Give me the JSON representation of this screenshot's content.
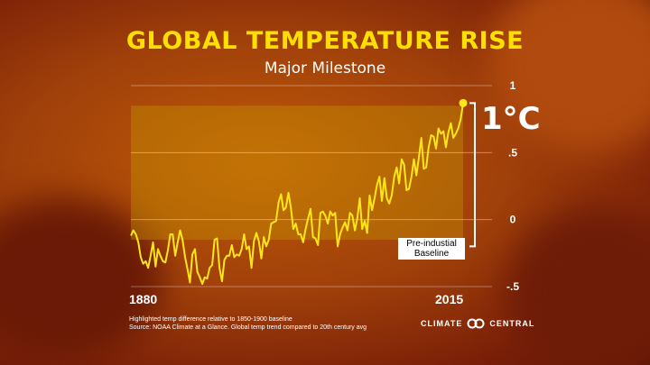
{
  "title": "GLOBAL TEMPERATURE RISE",
  "subtitle": "Major Milestone",
  "annotation": "1°C",
  "baseline_label_line1": "Pre-industial",
  "baseline_label_line2": "Baseline",
  "footnote_line1": "Highlighted temp difference relative to 1850-1900 baseline",
  "footnote_line2": "Source: NOAA Climate at a Glance. Global temp trend compared to 20th century avg",
  "logo_left": "CLIMATE",
  "logo_right": "CENTRAL",
  "colors": {
    "line": "#ffe61a",
    "title": "#ffe000",
    "highlight": "#c8a000"
  },
  "chart_data": {
    "type": "line",
    "xlim": [
      1880,
      2015
    ],
    "ylim": [
      -0.5,
      1
    ],
    "x_tick_labels": [
      "1880",
      "2015"
    ],
    "y_tick_labels": [
      "1",
      ".5",
      "0",
      "-.5"
    ],
    "y_ticks": [
      1,
      0.5,
      0,
      -0.5
    ],
    "grid": true,
    "series": [
      {
        "x": [
          1880,
          1881,
          1882,
          1883,
          1884,
          1885,
          1886,
          1887,
          1888,
          1889,
          1890,
          1891,
          1892,
          1893,
          1894,
          1895,
          1896,
          1897,
          1898,
          1899,
          1900,
          1901,
          1902,
          1903,
          1904,
          1905,
          1906,
          1907,
          1908,
          1909,
          1910,
          1911,
          1912,
          1913,
          1914,
          1915,
          1916,
          1917,
          1918,
          1919,
          1920,
          1921,
          1922,
          1923,
          1924,
          1925,
          1926,
          1927,
          1928,
          1929,
          1930,
          1931,
          1932,
          1933,
          1934,
          1935,
          1936,
          1937,
          1938,
          1939,
          1940,
          1941,
          1942,
          1943,
          1944,
          1945,
          1946,
          1947,
          1948,
          1949,
          1950,
          1951,
          1952,
          1953,
          1954,
          1955,
          1956,
          1957,
          1958,
          1959,
          1960,
          1961,
          1962,
          1963,
          1964,
          1965,
          1966,
          1967,
          1968,
          1969,
          1970,
          1971,
          1972,
          1973,
          1974,
          1975,
          1976,
          1977,
          1978,
          1979,
          1980,
          1981,
          1982,
          1983,
          1984,
          1985,
          1986,
          1987,
          1988,
          1989,
          1990,
          1991,
          1992,
          1993,
          1994,
          1995,
          1996,
          1997,
          1998,
          1999,
          2000,
          2001,
          2002,
          2003,
          2004,
          2005,
          2006,
          2007,
          2008,
          2009,
          2010,
          2011,
          2012,
          2013,
          2014,
          2015
        ],
        "y": [
          -0.12,
          -0.08,
          -0.11,
          -0.17,
          -0.28,
          -0.33,
          -0.31,
          -0.36,
          -0.27,
          -0.17,
          -0.35,
          -0.22,
          -0.27,
          -0.31,
          -0.32,
          -0.23,
          -0.11,
          -0.11,
          -0.27,
          -0.17,
          -0.08,
          -0.15,
          -0.28,
          -0.37,
          -0.47,
          -0.26,
          -0.22,
          -0.39,
          -0.43,
          -0.48,
          -0.43,
          -0.44,
          -0.36,
          -0.34,
          -0.15,
          -0.14,
          -0.36,
          -0.46,
          -0.3,
          -0.27,
          -0.27,
          -0.19,
          -0.28,
          -0.26,
          -0.27,
          -0.22,
          -0.11,
          -0.22,
          -0.2,
          -0.36,
          -0.16,
          -0.1,
          -0.16,
          -0.29,
          -0.13,
          -0.2,
          -0.15,
          -0.03,
          -0.02,
          -0.01,
          0.13,
          0.19,
          0.07,
          0.09,
          0.2,
          0.09,
          -0.07,
          -0.03,
          -0.11,
          -0.11,
          -0.17,
          -0.07,
          0.01,
          0.08,
          -0.13,
          -0.14,
          -0.19,
          0.05,
          0.06,
          0.03,
          -0.03,
          0.06,
          0.03,
          0.05,
          -0.2,
          -0.11,
          -0.06,
          -0.02,
          -0.08,
          0.05,
          0.03,
          -0.08,
          0.01,
          0.16,
          -0.07,
          -0.01,
          -0.1,
          0.18,
          0.07,
          0.16,
          0.26,
          0.32,
          0.14,
          0.31,
          0.16,
          0.12,
          0.18,
          0.32,
          0.39,
          0.27,
          0.45,
          0.41,
          0.22,
          0.23,
          0.32,
          0.45,
          0.33,
          0.46,
          0.61,
          0.38,
          0.39,
          0.54,
          0.63,
          0.62,
          0.53,
          0.68,
          0.64,
          0.66,
          0.54,
          0.65,
          0.72,
          0.61,
          0.64,
          0.68,
          0.75,
          0.87
        ]
      }
    ]
  }
}
